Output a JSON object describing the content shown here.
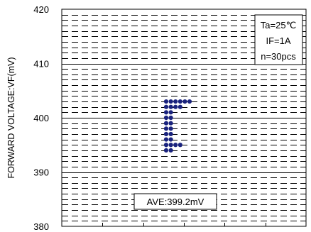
{
  "chart_data": {
    "type": "scatter",
    "title": "",
    "ylabel": "FORWARD VOLTAGE:VF(mV)",
    "xlabel": "",
    "ylim": [
      380,
      420
    ],
    "yticks": [
      380,
      390,
      400,
      410,
      420
    ],
    "x_categories": 6,
    "grid": "dashed minor every 1mV, solid major every 10mV",
    "conditions": [
      "Ta=25℃",
      "IF=1A",
      "n=30pcs"
    ],
    "average_label": "AVE:399.2mV",
    "colors": {
      "marker": "#1a237e",
      "grid": "#000000"
    },
    "columns": [
      {
        "x": 0,
        "values": [
          403,
          402,
          401,
          400,
          399,
          398,
          397,
          396,
          395,
          394
        ]
      },
      {
        "x": 1,
        "values": [
          403,
          402,
          401,
          400,
          399,
          398,
          397,
          396,
          395,
          394
        ]
      },
      {
        "x": 2,
        "values": [
          403,
          402,
          395
        ]
      },
      {
        "x": 3,
        "values": [
          403,
          402,
          395
        ]
      },
      {
        "x": 4,
        "values": [
          403
        ]
      },
      {
        "x": 5,
        "values": [
          403
        ]
      }
    ]
  }
}
